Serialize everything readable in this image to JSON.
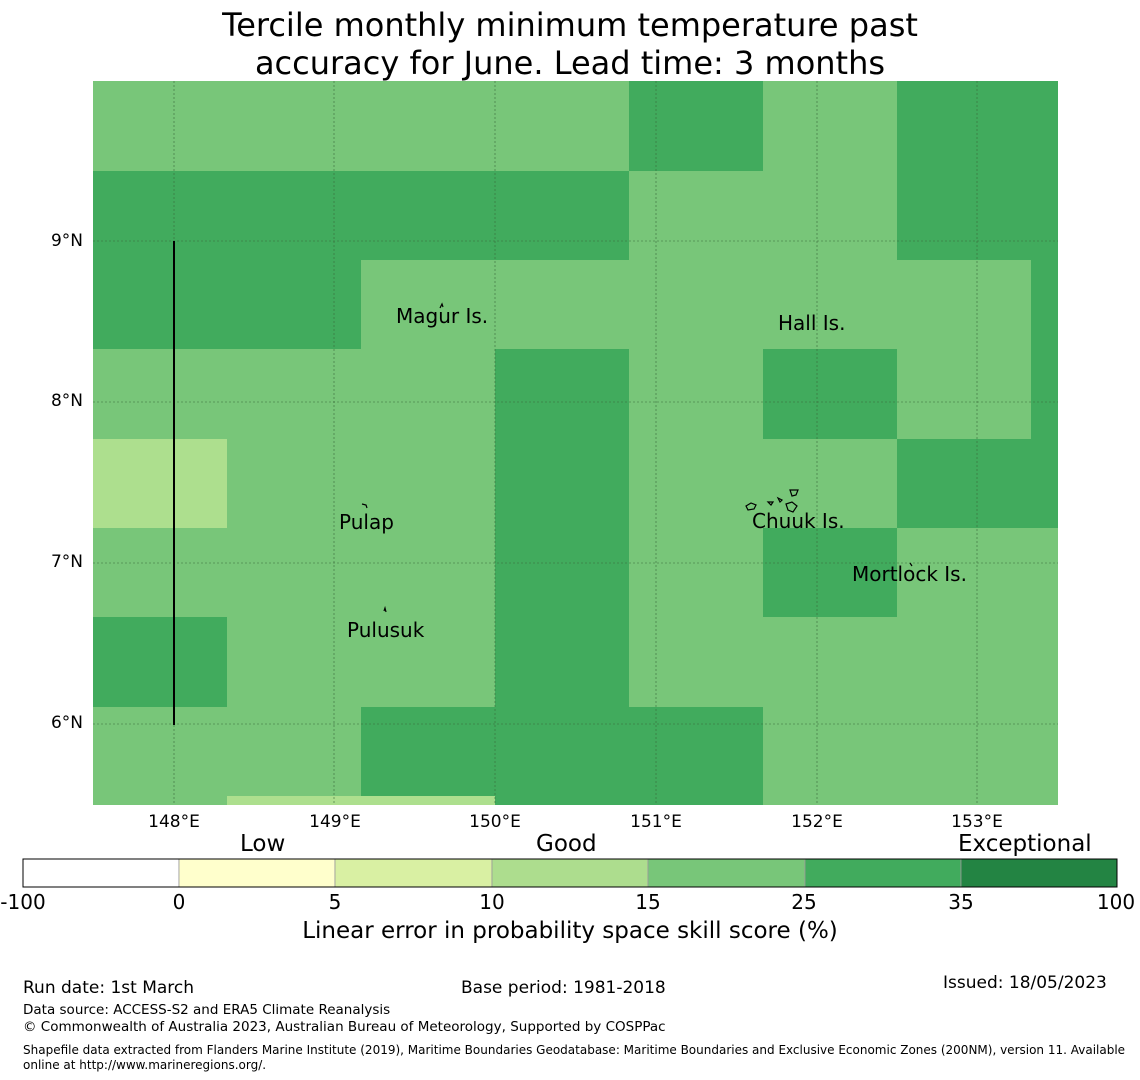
{
  "title": {
    "line1": "Tercile monthly minimum temperature past",
    "line2": "accuracy for June. Lead time: 3 months"
  },
  "map": {
    "lat_labels": [
      "9°N",
      "8°N",
      "7°N",
      "6°N"
    ],
    "lon_labels": [
      "148°E",
      "149°E",
      "150°E",
      "151°E",
      "152°E",
      "153°E"
    ],
    "places": {
      "magur": "Magur Is.",
      "hall": "Hall Is.",
      "pulap": "Pulap",
      "chuuk": "Chuuk Is.",
      "mortlock": "Mortlock Is.",
      "pulusuk": "Pulusuk"
    },
    "colors": {
      "light": "#addf8e",
      "mid": "#78c679",
      "dark": "#41ab5d"
    }
  },
  "colorbar": {
    "categories": {
      "low": "Low",
      "good": "Good",
      "exceptional": "Exceptional"
    },
    "ticks": [
      "-100",
      "0",
      "5",
      "10",
      "15",
      "25",
      "35",
      "100"
    ],
    "colors": [
      "#ffffff",
      "#ffffcc",
      "#d9f0a3",
      "#addd8e",
      "#78c679",
      "#41ab5d",
      "#238443"
    ],
    "label": "Linear error in probability space skill score (%)"
  },
  "footer": {
    "run_date": "Run date: 1st March",
    "base_period": "Base period: 1981-2018",
    "issued": "Issued: 18/05/2023",
    "data_source": "Data source: ACCESS-S2 and ERA5 Climate Reanalysis",
    "copyright": "© Commonwealth of Australia 2023, Australian Bureau of Meteorology, Supported by COSPPac",
    "shapefile": "Shapefile data extracted from Flanders Marine Institute (2019), Maritime Boundaries Geodatabase: Maritime Boundaries and Exclusive Economic Zones (200NM), version 11. Available online at http://www.marineregions.org/."
  }
}
